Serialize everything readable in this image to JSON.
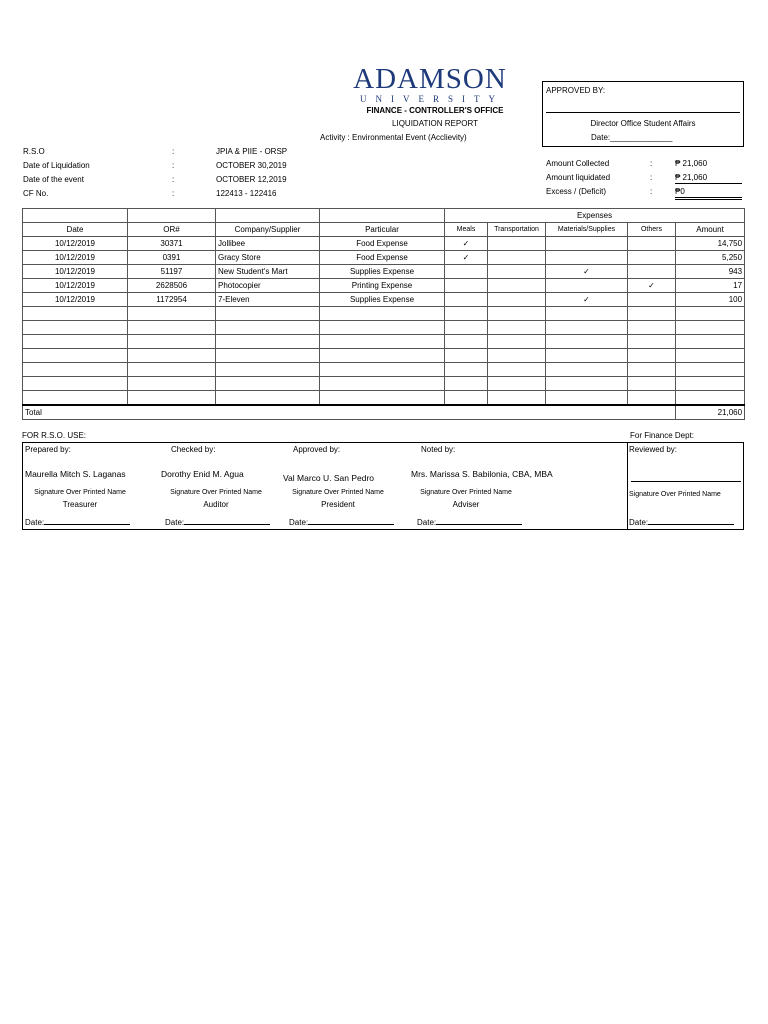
{
  "header": {
    "logo_main": "ADAMSON",
    "logo_sub": "UNIVERSITY",
    "office": "FINANCE - CONTROLLER'S OFFICE",
    "report_title": "LIQUIDATION REPORT",
    "activity": "Activity : Environmental Event (Acclievity)"
  },
  "approval": {
    "label": "APPROVED BY:",
    "role": "Director Office Student Affairs",
    "date_label": "Date:______________"
  },
  "info": [
    {
      "label": "R.S.O",
      "sep": ":",
      "value": "JPIA & PIIE - ORSP"
    },
    {
      "label": "Date of Liquidation",
      "sep": ":",
      "value": "OCTOBER 30,2019"
    },
    {
      "label": "Date of the event",
      "sep": ":",
      "value": "OCTOBER 12,2019"
    },
    {
      "label": "CF No.",
      "sep": ":",
      "value": "122413 - 122416"
    }
  ],
  "amounts": [
    {
      "label": "Amount Collected",
      "sep": ":",
      "value": "₱ 21,060"
    },
    {
      "label": "Amount liquidated",
      "sep": ":",
      "value": "₱ 21,060"
    },
    {
      "label": "Excess / (Deficit)",
      "sep": ":",
      "value": "₱0"
    }
  ],
  "table": {
    "expenses_header": "Expenses",
    "columns": [
      "Date",
      "OR#",
      "Company/Supplier",
      "Particular",
      "Meals",
      "Transportation",
      "Materials/Supplies",
      "Others",
      "Amount"
    ],
    "rows": [
      [
        "10/12/2019",
        "30371",
        "Jollibee",
        "Food Expense",
        "✓",
        "",
        "",
        "",
        "14,750"
      ],
      [
        "10/12/2019",
        "0391",
        "Gracy Store",
        "Food Expense",
        "✓",
        "",
        "",
        "",
        "5,250"
      ],
      [
        "10/12/2019",
        "51197",
        "New Student's Mart",
        "Supplies Expense",
        "",
        "",
        "✓",
        "",
        "943"
      ],
      [
        "10/12/2019",
        "2628506",
        "Photocopier",
        "Printing Expense",
        "",
        "",
        "",
        "✓",
        "17"
      ],
      [
        "10/12/2019",
        "1172954",
        "7-Eleven",
        "Supplies Expense",
        "",
        "",
        "✓",
        "",
        "100"
      ]
    ],
    "total_label": "Total",
    "total": "21,060"
  },
  "signatures": {
    "rso_label": "FOR R.S.O. USE:",
    "finance_label": "For Finance Dept:",
    "sig_caption": "Signature Over Printed Name",
    "date_label": "Date:",
    "people": [
      {
        "heading": "Prepared by:",
        "name": "Maurella Mitch S. Laganas",
        "role": "Treasurer"
      },
      {
        "heading": "Checked by:",
        "name": "Dorothy Enid M. Agua",
        "role": "Auditor"
      },
      {
        "heading": "Approved by:",
        "name": "Val Marco U. San Pedro",
        "role": "President"
      },
      {
        "heading": "Noted by:",
        "name": "Mrs. Marissa S. Babilonia, CBA, MBA",
        "role": "Adviser"
      }
    ],
    "finance": {
      "heading": "Reviewed by:"
    }
  }
}
